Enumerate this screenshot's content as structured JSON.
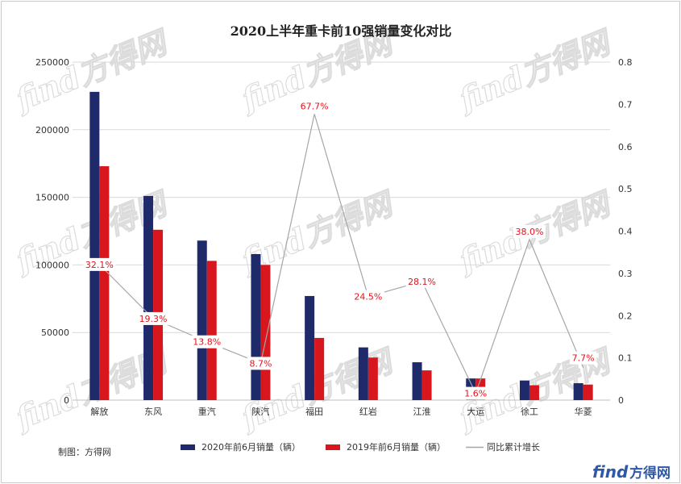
{
  "chart_data": {
    "type": "bar",
    "title": "2020上半年重卡前10强销量变化对比",
    "categories": [
      "解放",
      "东风",
      "重汽",
      "陕汽",
      "福田",
      "红岩",
      "江淮",
      "大运",
      "徐工",
      "华菱"
    ],
    "series": [
      {
        "name": "2020年前6月销量（辆）",
        "type": "bar",
        "color": "#1f2a6b",
        "values": [
          228000,
          151000,
          118000,
          108000,
          77000,
          39000,
          28000,
          16000,
          14500,
          12500
        ]
      },
      {
        "name": "2019年前6月销量（辆）",
        "type": "bar",
        "color": "#d7161e",
        "values": [
          173000,
          126000,
          103000,
          100000,
          46000,
          31500,
          22000,
          16000,
          11000,
          11500
        ]
      },
      {
        "name": "同比累计增长",
        "type": "line",
        "axis": "right",
        "color": "#a6a6a6",
        "values": [
          0.321,
          0.193,
          0.138,
          0.087,
          0.677,
          0.245,
          0.281,
          0.016,
          0.38,
          0.077
        ],
        "labels": [
          "32.1%",
          "19.3%",
          "13.8%",
          "8.7%",
          "67.7%",
          "24.5%",
          "28.1%",
          "1.6%",
          "38.0%",
          "7.7%"
        ]
      }
    ],
    "y_left": {
      "range": [
        0,
        250000
      ],
      "ticks": [
        "0",
        "50000",
        "100000",
        "150000",
        "200000",
        "250000"
      ]
    },
    "y_right": {
      "range": [
        0,
        0.8
      ],
      "ticks": [
        "0",
        "0.1",
        "0.2",
        "0.3",
        "0.4",
        "0.5",
        "0.6",
        "0.7",
        "0.8"
      ]
    },
    "grid": true,
    "legend_position": "bottom",
    "label_color": "#e0141e"
  },
  "credit": "制图：方得网",
  "watermark": "find方得网",
  "brand": {
    "latin": "find",
    "cjk": "方得网"
  }
}
